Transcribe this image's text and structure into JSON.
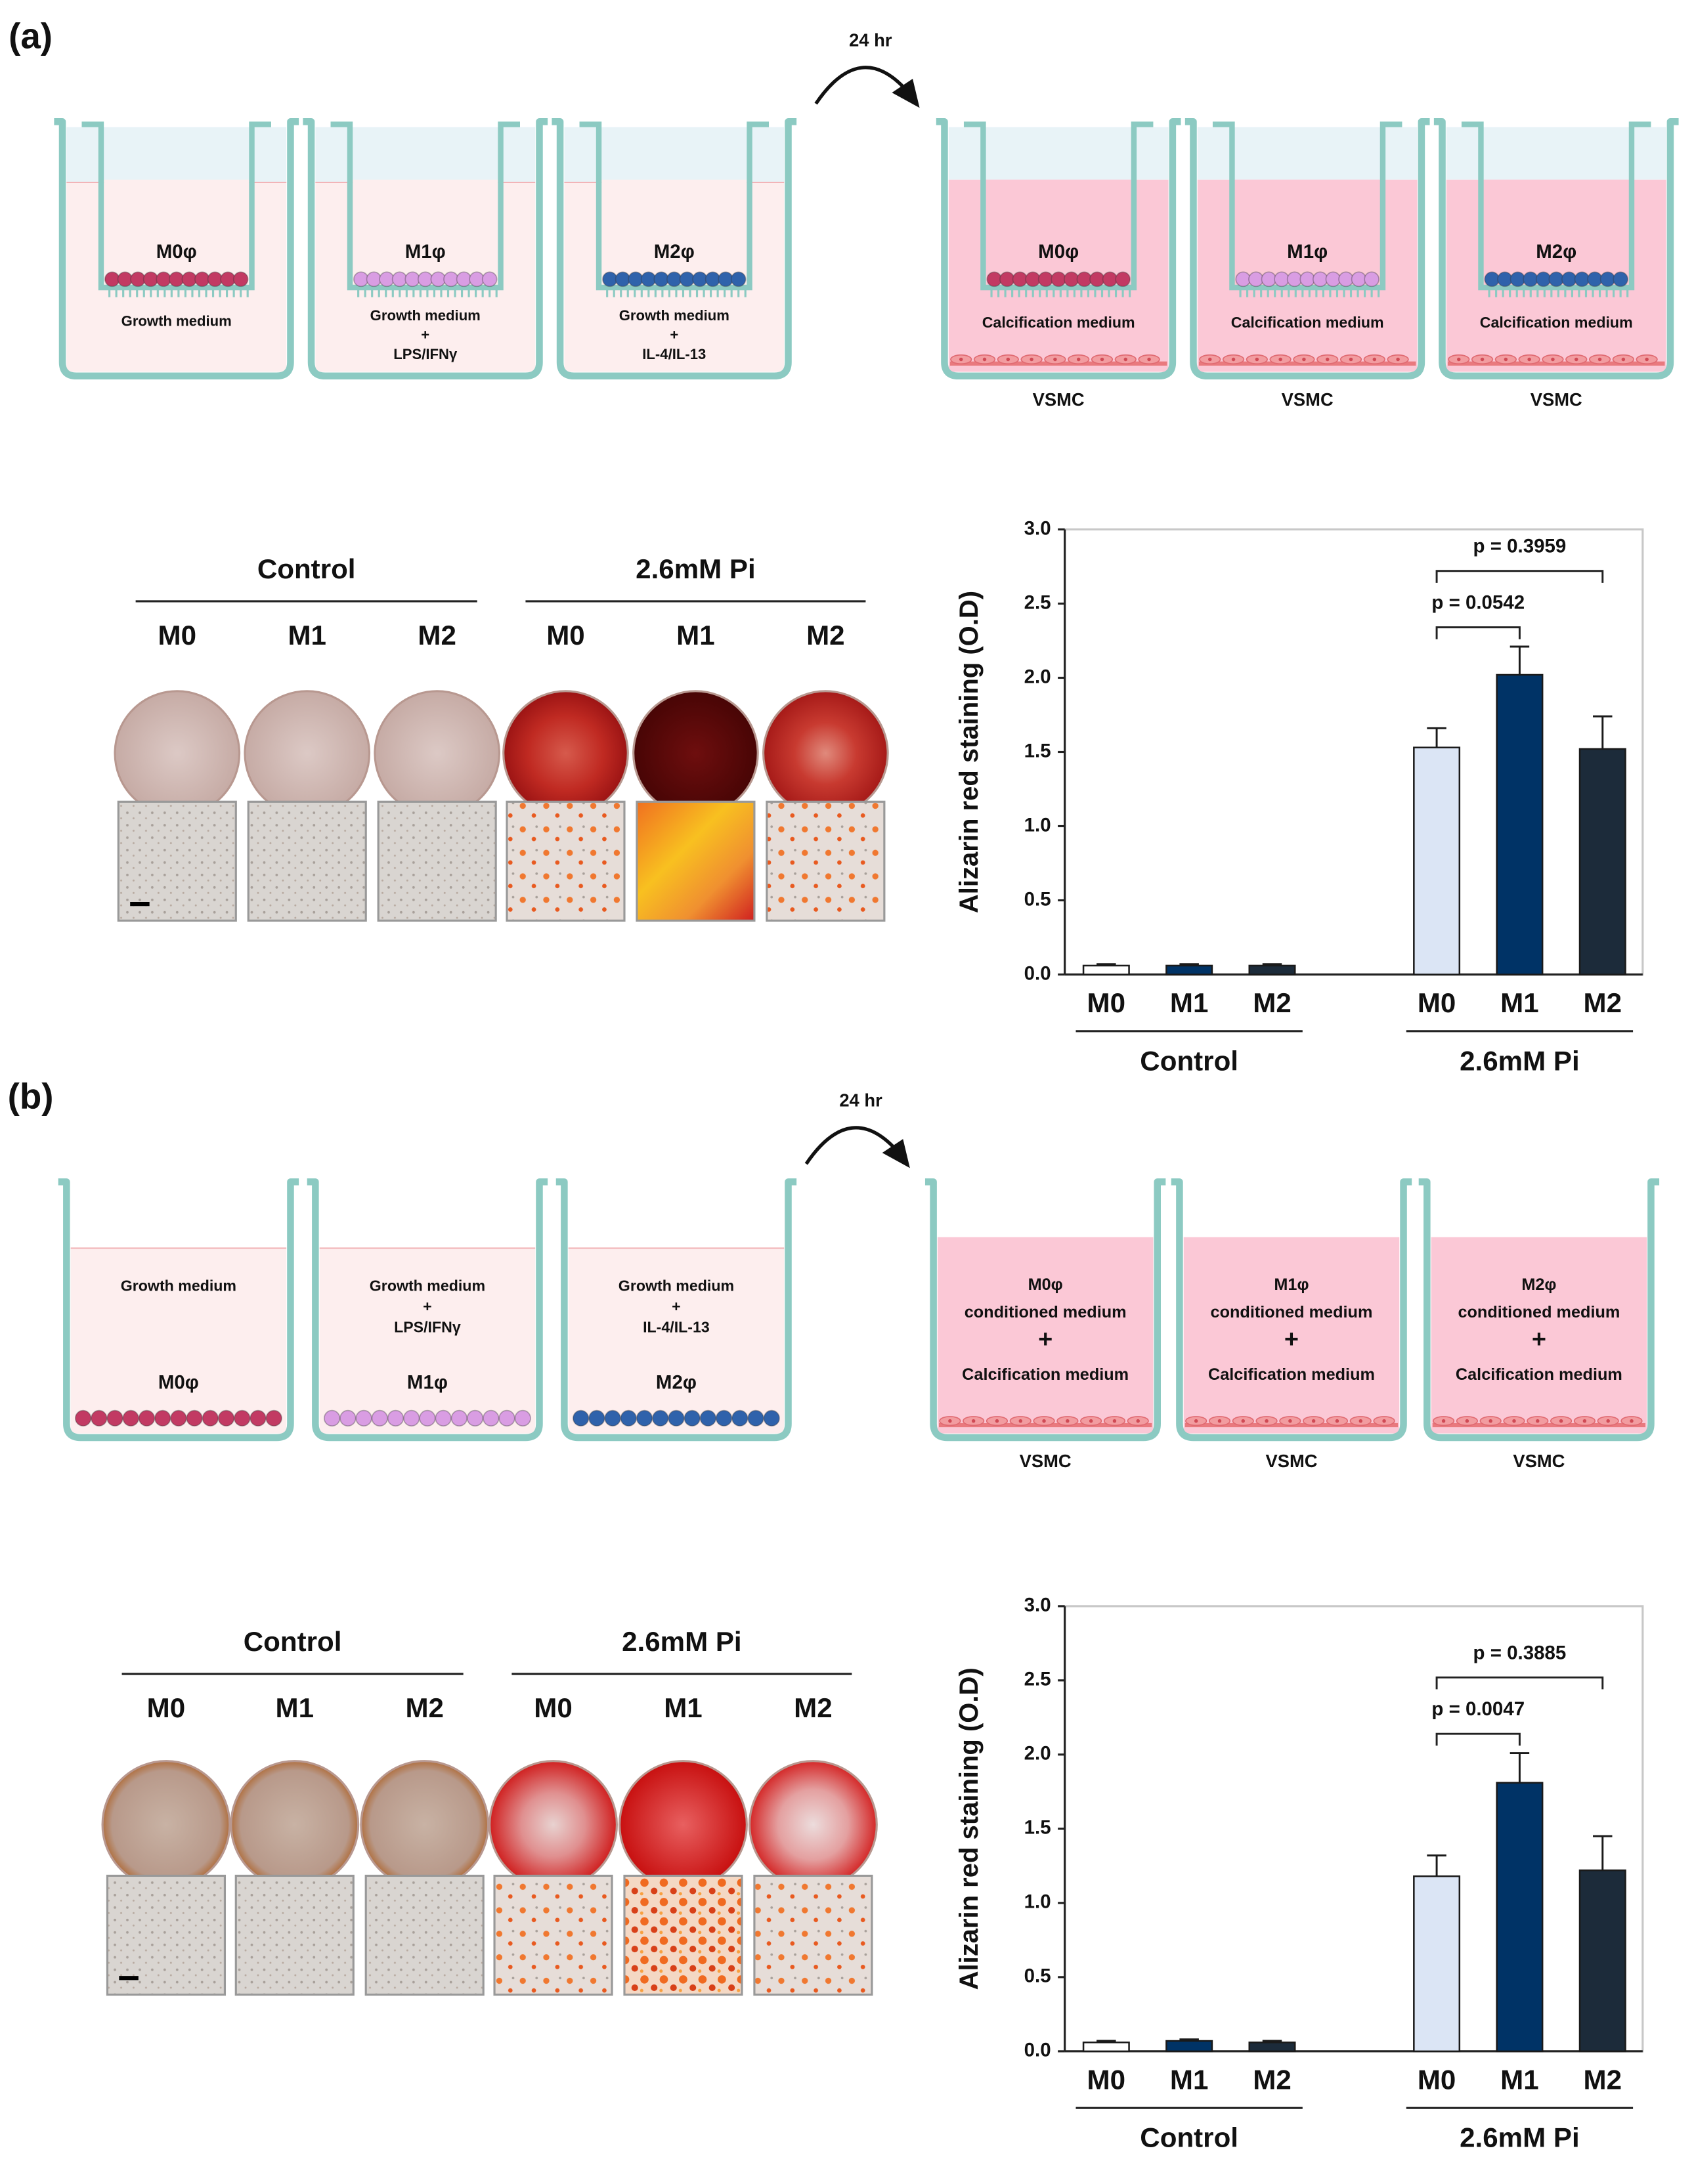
{
  "panels": [
    {
      "label": "(a)",
      "arrow_label": "24 hr",
      "source_wells": [
        {
          "cell": "M0φ",
          "medium": [
            "Growth medium"
          ],
          "color": "#c23a63"
        },
        {
          "cell": "M1φ",
          "medium": [
            "Growth medium",
            "+",
            "LPS/IFNγ"
          ],
          "color": "#d99de3"
        },
        {
          "cell": "M2φ",
          "medium": [
            "Growth medium",
            "+",
            "IL-4/IL-13"
          ],
          "color": "#2f62ab"
        }
      ],
      "target_wells": [
        {
          "cell": "M0φ",
          "medium": [
            "Calcification medium"
          ],
          "color": "#c23a63",
          "bottom": "VSMC"
        },
        {
          "cell": "M1φ",
          "medium": [
            "Calcification medium"
          ],
          "color": "#d99de3",
          "bottom": "VSMC"
        },
        {
          "cell": "M2φ",
          "medium": [
            "Calcification medium"
          ],
          "color": "#2f62ab",
          "bottom": "VSMC"
        }
      ],
      "staining": {
        "groups": [
          {
            "name": "Control",
            "wells": [
              "M0",
              "M1",
              "M2"
            ]
          },
          {
            "name": "2.6mM Pi",
            "wells": [
              "M0",
              "M1",
              "M2"
            ]
          }
        ]
      }
    },
    {
      "label": "(b)",
      "arrow_label": "24 hr",
      "source_wells": [
        {
          "cell": "M0φ",
          "medium": [
            "Growth medium"
          ],
          "color": "#c23a63"
        },
        {
          "cell": "M1φ",
          "medium": [
            "Growth medium",
            "+",
            "LPS/IFNγ"
          ],
          "color": "#d99de3"
        },
        {
          "cell": "M2φ",
          "medium": [
            "Growth medium",
            "+",
            "IL-4/IL-13"
          ],
          "color": "#2f62ab"
        }
      ],
      "target_wells": [
        {
          "medium": [
            "M0φ",
            "conditioned medium",
            "+",
            "Calcification medium"
          ],
          "bottom": "VSMC"
        },
        {
          "medium": [
            "M1φ",
            "conditioned medium",
            "+",
            "Calcification medium"
          ],
          "bottom": "VSMC"
        },
        {
          "medium": [
            "M2φ",
            "conditioned medium",
            "+",
            "Calcification medium"
          ],
          "bottom": "VSMC"
        }
      ],
      "staining": {
        "groups": [
          {
            "name": "Control",
            "wells": [
              "M0",
              "M1",
              "M2"
            ]
          },
          {
            "name": "2.6mM Pi",
            "wells": [
              "M0",
              "M1",
              "M2"
            ]
          }
        ]
      }
    }
  ],
  "chart_data": [
    {
      "type": "bar",
      "ylabel": "Alizarin red staining (O.D)",
      "ylim": [
        0,
        3
      ],
      "yticks": [
        {
          "value": 0,
          "label": "0.0"
        },
        {
          "value": 0.5,
          "label": "0.5"
        },
        {
          "value": 1,
          "label": "1.0"
        },
        {
          "value": 1.5,
          "label": "1.5"
        },
        {
          "value": 2,
          "label": "2.0"
        },
        {
          "value": 2.5,
          "label": "2.5"
        },
        {
          "value": 3,
          "label": "3.0"
        }
      ],
      "groups": [
        {
          "name": "Control",
          "categories": [
            "M0",
            "M1",
            "M2"
          ],
          "values": [
            0.06,
            0.06,
            0.06
          ],
          "errors": [
            0.01,
            0.01,
            0.01
          ],
          "colors": [
            "#ffffff",
            "#003366",
            "#1c2b3a"
          ]
        },
        {
          "name": "2.6mM Pi",
          "categories": [
            "M0",
            "M1",
            "M2"
          ],
          "values": [
            1.53,
            2.02,
            1.52
          ],
          "errors": [
            0.13,
            0.19,
            0.22
          ],
          "colors": [
            "#dbe5f5",
            "#003366",
            "#1c2b3a"
          ]
        }
      ],
      "comparisons": [
        {
          "label": "p = 0.0542",
          "group": 1,
          "from": 0,
          "to": 1
        },
        {
          "label": "p = 0.3959",
          "group": 1,
          "from": 0,
          "to": 2
        }
      ]
    },
    {
      "type": "bar",
      "ylabel": "Alizarin red staining (O.D)",
      "ylim": [
        0,
        3
      ],
      "yticks": [
        {
          "value": 0,
          "label": "0.0"
        },
        {
          "value": 0.5,
          "label": "0.5"
        },
        {
          "value": 1,
          "label": "1.0"
        },
        {
          "value": 1.5,
          "label": "1.5"
        },
        {
          "value": 2,
          "label": "2.0"
        },
        {
          "value": 2.5,
          "label": "2.5"
        },
        {
          "value": 3,
          "label": "3.0"
        }
      ],
      "groups": [
        {
          "name": "Control",
          "categories": [
            "M0",
            "M1",
            "M2"
          ],
          "values": [
            0.06,
            0.07,
            0.06
          ],
          "errors": [
            0.01,
            0.01,
            0.01
          ],
          "colors": [
            "#ffffff",
            "#003366",
            "#1c2b3a"
          ]
        },
        {
          "name": "2.6mM Pi",
          "categories": [
            "M0",
            "M1",
            "M2"
          ],
          "values": [
            1.18,
            1.81,
            1.22
          ],
          "errors": [
            0.14,
            0.2,
            0.23
          ],
          "colors": [
            "#dbe5f5",
            "#003366",
            "#1c2b3a"
          ]
        }
      ],
      "comparisons": [
        {
          "label": "p = 0.0047",
          "group": 1,
          "from": 0,
          "to": 1
        },
        {
          "label": "p = 0.3885",
          "group": 1,
          "from": 0,
          "to": 2
        }
      ]
    }
  ]
}
